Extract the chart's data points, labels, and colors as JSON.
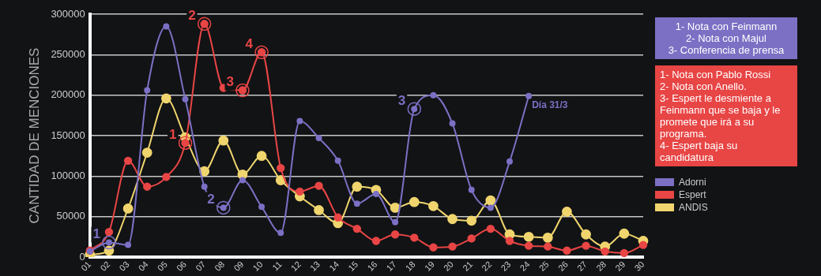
{
  "chart_data": {
    "type": "line",
    "ylabel": "CANTIDAD DE MENCIONES",
    "categories": [
      "01",
      "02",
      "03",
      "04",
      "05",
      "06",
      "07",
      "08",
      "09",
      "10",
      "11",
      "12",
      "13",
      "14",
      "15",
      "16",
      "17",
      "18",
      "19",
      "20",
      "21",
      "22",
      "23",
      "24",
      "25",
      "26",
      "27",
      "28",
      "29",
      "30"
    ],
    "series": [
      {
        "name": "Adorni",
        "color": "#7b70c4",
        "values": [
          7000,
          18000,
          15000,
          206000,
          285000,
          195000,
          87000,
          61000,
          95000,
          62000,
          30000,
          168000,
          147000,
          119000,
          66000,
          78000,
          43000,
          183000,
          200000,
          165000,
          83000,
          61000,
          118000,
          199000,
          null,
          null,
          null,
          null,
          null,
          null
        ]
      },
      {
        "name": "Espert",
        "color": "#e84545",
        "values": [
          8000,
          31000,
          119000,
          87000,
          99000,
          141000,
          288000,
          209000,
          206000,
          253000,
          110000,
          81000,
          88000,
          49000,
          35000,
          20000,
          28000,
          24000,
          12000,
          13000,
          23000,
          35000,
          20000,
          14000,
          13000,
          8000,
          14000,
          7000,
          5000,
          15000
        ]
      },
      {
        "name": "ANDIS",
        "color": "#f0d56e",
        "values": [
          3000,
          8000,
          60000,
          129000,
          196000,
          148000,
          106000,
          144000,
          102000,
          125000,
          95000,
          75000,
          58000,
          42000,
          87000,
          83000,
          61000,
          68000,
          63000,
          47000,
          45000,
          70000,
          28000,
          25000,
          24000,
          56000,
          28000,
          13000,
          29000,
          20000
        ]
      }
    ],
    "ylim": [
      0,
      300000
    ],
    "yticks": [
      0,
      50000,
      100000,
      150000,
      200000,
      250000,
      300000
    ],
    "grid": "y",
    "legend": "right",
    "marker": "circle",
    "annotations": [
      "1- Nota con Feinmann\n2- Nota con Majul\n3- Conferencia de prensa",
      "1- Nota con Pablo Rossi\n2- Nota con Anello.\n3- Espert le desmiente a Feinmann que se baja y le promete que irá a su programa.\n4- Espert baja su candidatura",
      {
        "text": "1",
        "x": "02",
        "y": 18000
      },
      {
        "text": "2",
        "x": "08",
        "y": 61000
      },
      {
        "text": "3",
        "x": "18",
        "y": 183000
      },
      {
        "text": "Día 31/3",
        "x": "24",
        "y": 199000
      },
      {
        "text": "1",
        "x": "06",
        "y": 141000
      },
      {
        "text": "2",
        "x": "07",
        "y": 288000
      },
      {
        "text": "3",
        "x": "09",
        "y": 206000
      },
      {
        "text": "4",
        "x": "10",
        "y": 253000
      }
    ]
  }
}
